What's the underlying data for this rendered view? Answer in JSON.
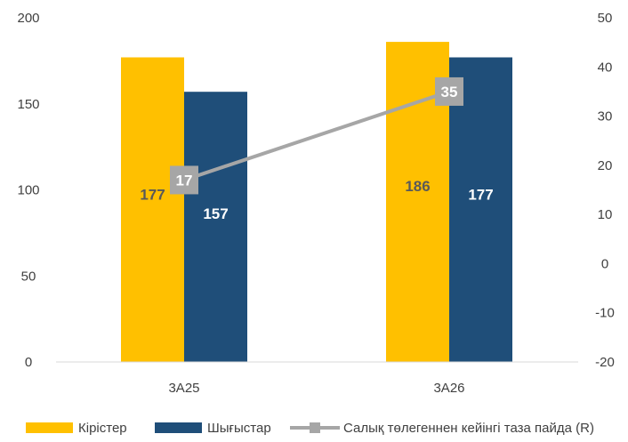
{
  "chart_data": {
    "type": "bar",
    "categories": [
      "3A25",
      "3A26"
    ],
    "series": [
      {
        "name": "Кірістер",
        "type": "bar",
        "axis": "left",
        "color": "#FFC000",
        "values": [
          177,
          186
        ],
        "labels": [
          "177",
          "186"
        ],
        "label_color": "#595959"
      },
      {
        "name": "Шығыстар",
        "type": "bar",
        "axis": "left",
        "color": "#1F4E79",
        "values": [
          157,
          177
        ],
        "labels": [
          "157",
          "177"
        ],
        "label_color": "#ffffff"
      },
      {
        "name": "Салық төлегеннен кейінгі таза пайда (R)",
        "type": "line",
        "axis": "right",
        "color": "#A6A6A6",
        "values": [
          17,
          35
        ],
        "labels": [
          "17",
          "35"
        ]
      }
    ],
    "y_left": {
      "min": 0,
      "max": 200,
      "ticks": [
        "0",
        "50",
        "100",
        "150",
        "200"
      ]
    },
    "y_right": {
      "min": -20,
      "max": 50,
      "ticks": [
        "-20",
        "-10",
        "0",
        "10",
        "20",
        "30",
        "40",
        "50"
      ]
    },
    "grid": false,
    "legend_position": "bottom"
  },
  "colors": {
    "revenue": "#FFC000",
    "expenses": "#1F4E79",
    "profit_line": "#A6A6A6",
    "axis": "#D9D9D9",
    "text": "#404040"
  }
}
